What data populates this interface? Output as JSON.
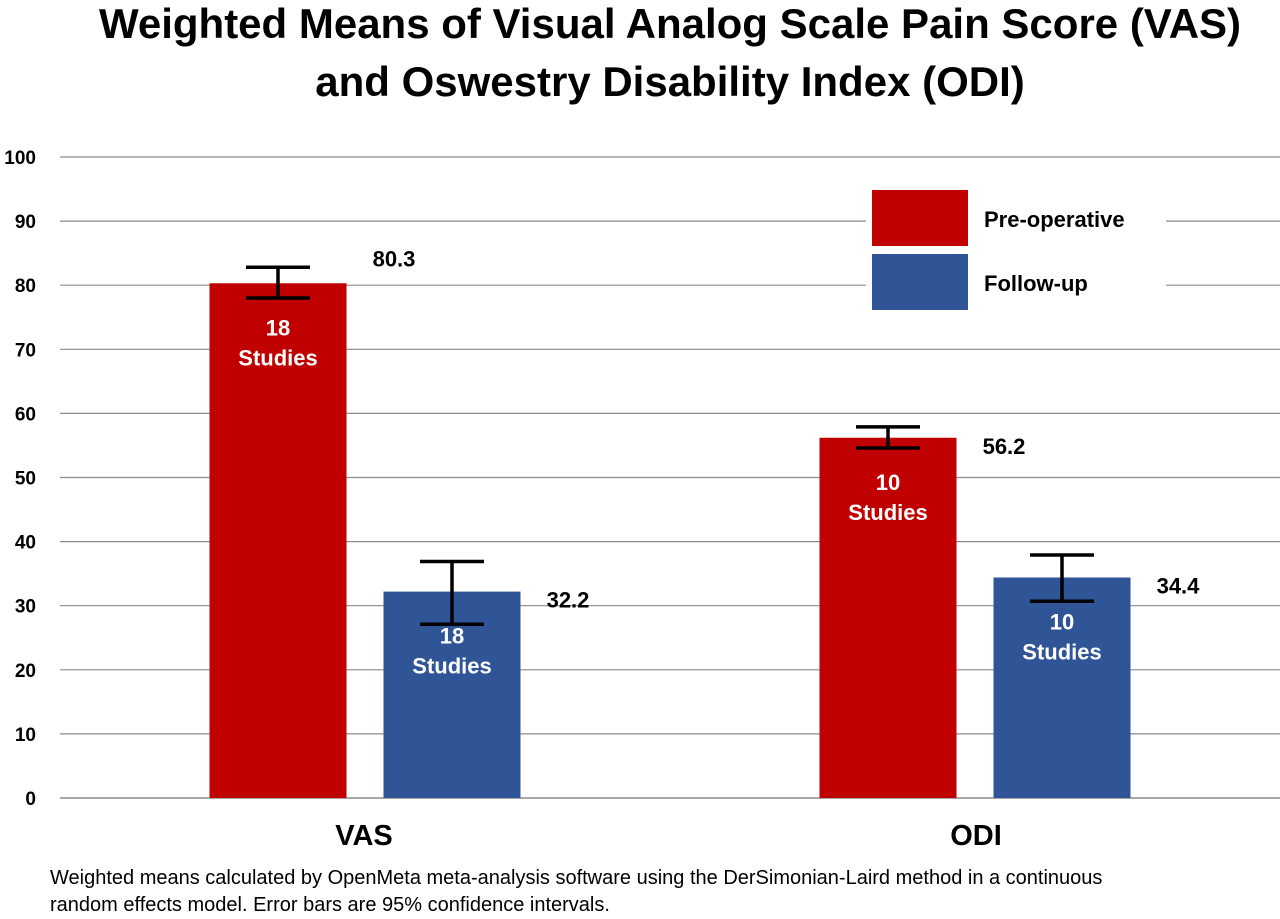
{
  "title": {
    "line1": "Weighted Means of Visual Analog Scale Pain Score (VAS)",
    "line2": "and Oswestry Disability Index (ODI)"
  },
  "footnote": {
    "line1": "Weighted means calculated by OpenMeta meta-analysis software using the DerSimonian-Laird method in a continuous",
    "line2": "random effects model. Error bars are 95% confidence intervals."
  },
  "colors": {
    "preoperative": "#C00000",
    "followup": "#2F5597",
    "grid": "#8C8C8C"
  },
  "chart_data": {
    "type": "bar",
    "title": "Weighted Means of Visual Analog Scale Pain Score (VAS) and Oswestry Disability Index (ODI)",
    "categories": [
      "VAS",
      "ODI"
    ],
    "ylim": [
      0,
      100
    ],
    "yticks": [
      0,
      10,
      20,
      30,
      40,
      50,
      60,
      70,
      80,
      90,
      100
    ],
    "grid": true,
    "legend_position": "top-right",
    "series": [
      {
        "name": "Pre-operative",
        "color": "#C00000",
        "values": [
          80.3,
          56.2
        ],
        "value_labels": [
          "80.3",
          "56.2"
        ],
        "ci_low": [
          78.0,
          54.6
        ],
        "ci_high": [
          82.8,
          57.9
        ],
        "bar_labels": [
          [
            "18",
            "Studies"
          ],
          [
            "10",
            "Studies"
          ]
        ]
      },
      {
        "name": "Follow-up",
        "color": "#2F5597",
        "values": [
          32.2,
          34.4
        ],
        "value_labels": [
          "32.2",
          "34.4"
        ],
        "ci_low": [
          27.1,
          30.7
        ],
        "ci_high": [
          36.9,
          37.9
        ],
        "bar_labels": [
          [
            "18",
            "Studies"
          ],
          [
            "10",
            "Studies"
          ]
        ]
      }
    ]
  }
}
